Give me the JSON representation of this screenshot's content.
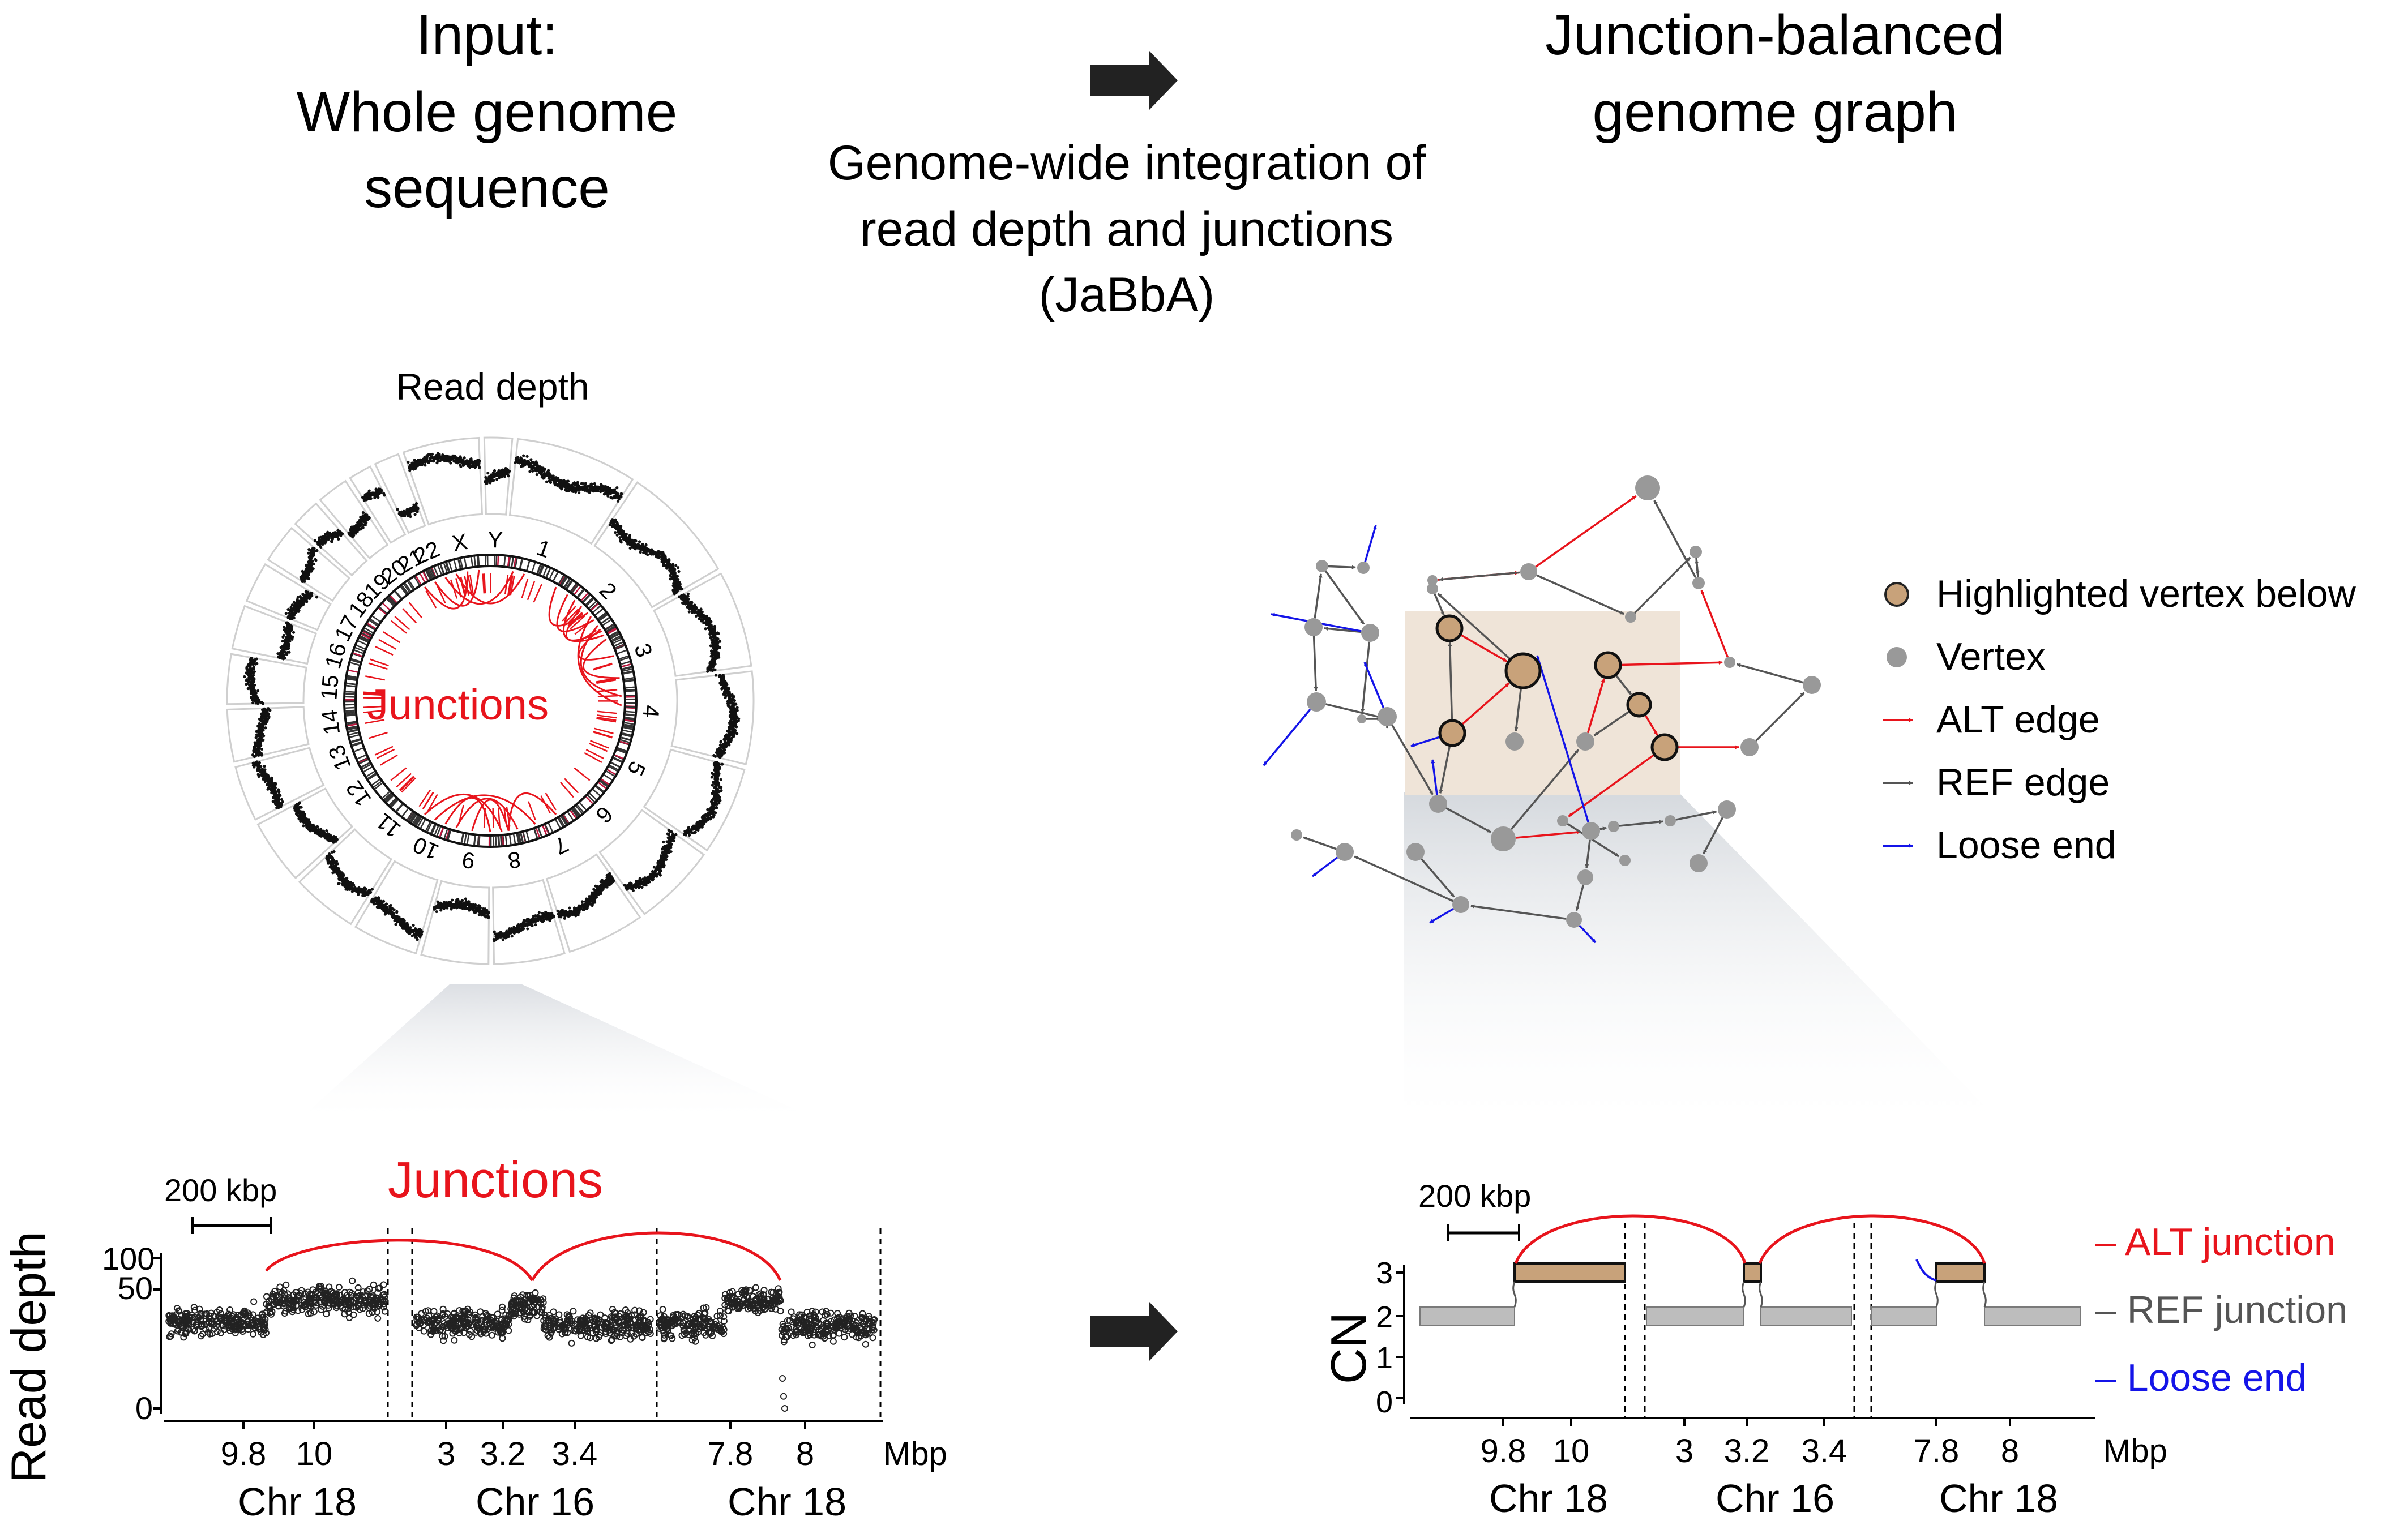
{
  "header": {
    "input_line1": "Input:",
    "input_line2": "Whole genome",
    "input_line3": "sequence",
    "method_line1": "Genome-wide integration of",
    "method_line2": "read depth and junctions",
    "method_line3": "(JaBbA)",
    "output_line1": "Junction-balanced",
    "output_line2": "genome graph"
  },
  "circos": {
    "title": "Read depth",
    "junctions_label": "Junctions",
    "chromosomes": [
      "1",
      "2",
      "3",
      "4",
      "5",
      "6",
      "7",
      "8",
      "9",
      "10",
      "11",
      "12",
      "13",
      "14",
      "15",
      "16",
      "17",
      "18",
      "19",
      "20",
      "21",
      "22",
      "X",
      "Y"
    ]
  },
  "legend": {
    "highlighted": "Highlighted vertex below",
    "vertex": "Vertex",
    "alt_edge": "ALT edge",
    "ref_edge": "REF edge",
    "loose_end": "Loose end"
  },
  "left_plot": {
    "scale_bar": "200 kbp",
    "junctions_label": "Junctions",
    "ylabel": "Read depth",
    "yticks": [
      "100",
      "50",
      "0"
    ],
    "xunit": "Mbp",
    "panels": [
      {
        "ticks": [
          "9.8",
          "10"
        ],
        "chrom": "Chr 18"
      },
      {
        "ticks": [
          "3",
          "3.2",
          "3.4"
        ],
        "chrom": "Chr 16"
      },
      {
        "ticks": [
          "7.8",
          "8"
        ],
        "chrom": "Chr 18"
      }
    ]
  },
  "right_plot": {
    "scale_bar": "200 kbp",
    "ylabel": "CN",
    "yticks": [
      "3",
      "2",
      "1",
      "0"
    ],
    "xunit": "Mbp",
    "panels": [
      {
        "ticks": [
          "9.8",
          "10"
        ],
        "chrom": "Chr 18"
      },
      {
        "ticks": [
          "3",
          "3.2",
          "3.4"
        ],
        "chrom": "Chr 16"
      },
      {
        "ticks": [
          "7.8",
          "8"
        ],
        "chrom": "Chr 18"
      }
    ],
    "legend": {
      "alt": "ALT junction",
      "ref": "REF junction",
      "loose": "Loose end"
    }
  },
  "colors": {
    "alt": "#e8141c",
    "ref": "#555555",
    "loose": "#1414e8",
    "vertex": "#999999",
    "highlight": "#c8a27a",
    "highlight_box": "#efe4d8"
  }
}
